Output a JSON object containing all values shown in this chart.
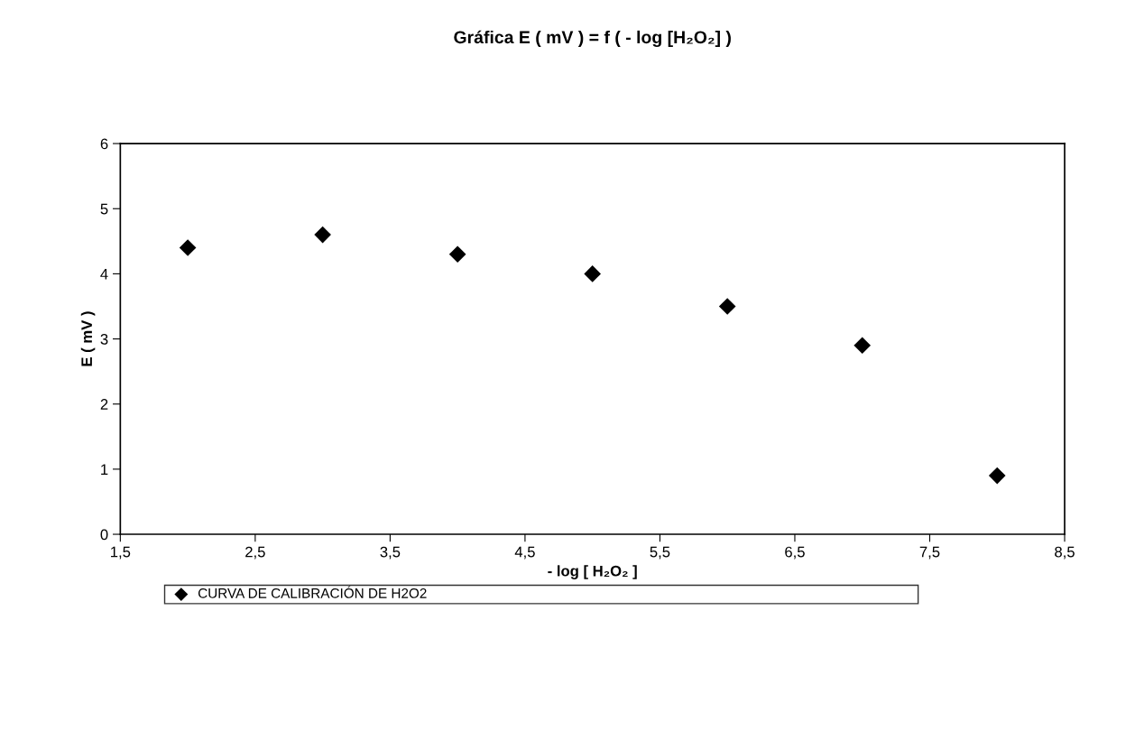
{
  "chart_data": {
    "type": "scatter",
    "title": "Gráfica E ( mV ) = f ( - log [H₂O₂] )",
    "xlabel": "- log [ H₂O₂ ]",
    "ylabel": "E ( mV )",
    "x": [
      2,
      3,
      4,
      5,
      6,
      7,
      8
    ],
    "series": [
      {
        "name": "CURVA DE CALIBRACIÓN DE H2O2",
        "color": "#000000",
        "values": [
          4.4,
          4.6,
          4.3,
          4.0,
          3.5,
          2.9,
          0.9
        ]
      }
    ],
    "xlim": [
      1.5,
      8.5
    ],
    "xticks": [
      {
        "value": 1.5,
        "label": "1,5"
      },
      {
        "value": 2.5,
        "label": "2,5"
      },
      {
        "value": 3.5,
        "label": "3,5"
      },
      {
        "value": 4.5,
        "label": "4,5"
      },
      {
        "value": 5.5,
        "label": "5,5"
      },
      {
        "value": 6.5,
        "label": "6,5"
      },
      {
        "value": 7.5,
        "label": "7,5"
      },
      {
        "value": 8.5,
        "label": "8,5"
      }
    ],
    "ylim": [
      0,
      6
    ],
    "yticks": [
      0,
      1,
      2,
      3,
      4,
      5,
      6
    ],
    "grid": false,
    "legend": "bottom",
    "marker": "diamond"
  }
}
